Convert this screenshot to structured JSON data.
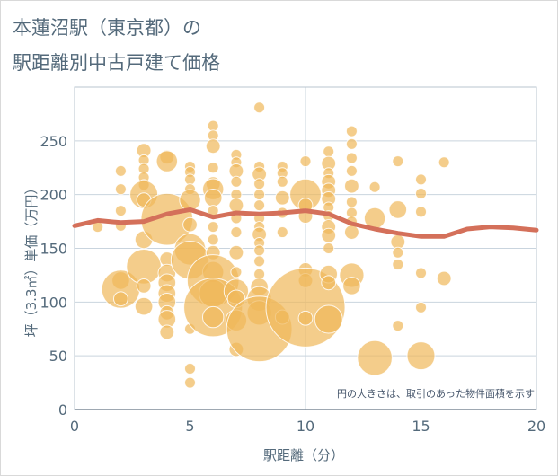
{
  "title_line1": "本蓮沼駅（東京都）の",
  "title_line2": "駅距離別中古戸建て価格",
  "chart_data": {
    "type": "scatter",
    "xlabel": "駅距離（分）",
    "ylabel": "坪（3.3㎡）単価（万円）",
    "xlim": [
      0,
      20
    ],
    "ylim": [
      0,
      300
    ],
    "xticks": [
      "0",
      "5",
      "10",
      "15",
      "20"
    ],
    "yticks": [
      "0",
      "50",
      "100",
      "150",
      "200",
      "250"
    ],
    "annotation": "円の大きさは、取引のあった物件面積を示す",
    "colors": {
      "bubble": "#f0b85a",
      "line": "#d4705a",
      "grid": "#c9d4de"
    },
    "bubbles": [
      {
        "x": 1,
        "y": 170,
        "size": 2
      },
      {
        "x": 2,
        "y": 222,
        "size": 2
      },
      {
        "x": 2,
        "y": 205,
        "size": 2
      },
      {
        "x": 2,
        "y": 185,
        "size": 2
      },
      {
        "x": 2,
        "y": 171,
        "size": 2
      },
      {
        "x": 2,
        "y": 120,
        "size": 4
      },
      {
        "x": 2,
        "y": 112,
        "size": 10
      },
      {
        "x": 2,
        "y": 103,
        "size": 3
      },
      {
        "x": 3,
        "y": 241,
        "size": 3
      },
      {
        "x": 3,
        "y": 232,
        "size": 2
      },
      {
        "x": 3,
        "y": 224,
        "size": 2
      },
      {
        "x": 3,
        "y": 216,
        "size": 2
      },
      {
        "x": 3,
        "y": 209,
        "size": 2
      },
      {
        "x": 3,
        "y": 200,
        "size": 7
      },
      {
        "x": 3,
        "y": 195,
        "size": 3
      },
      {
        "x": 3,
        "y": 158,
        "size": 4
      },
      {
        "x": 3,
        "y": 133,
        "size": 9
      },
      {
        "x": 3,
        "y": 115,
        "size": 3
      },
      {
        "x": 3,
        "y": 96,
        "size": 4
      },
      {
        "x": 4,
        "y": 235,
        "size": 3
      },
      {
        "x": 4,
        "y": 231,
        "size": 5
      },
      {
        "x": 4,
        "y": 177,
        "size": 14
      },
      {
        "x": 4,
        "y": 140,
        "size": 3
      },
      {
        "x": 4,
        "y": 127,
        "size": 4
      },
      {
        "x": 4,
        "y": 118,
        "size": 4
      },
      {
        "x": 4,
        "y": 108,
        "size": 4
      },
      {
        "x": 4,
        "y": 100,
        "size": 4
      },
      {
        "x": 4,
        "y": 90,
        "size": 3
      },
      {
        "x": 4,
        "y": 84,
        "size": 4
      },
      {
        "x": 4,
        "y": 72,
        "size": 3
      },
      {
        "x": 5,
        "y": 226,
        "size": 2
      },
      {
        "x": 5,
        "y": 221,
        "size": 2
      },
      {
        "x": 5,
        "y": 214,
        "size": 2
      },
      {
        "x": 5,
        "y": 205,
        "size": 2
      },
      {
        "x": 5,
        "y": 195,
        "size": 5
      },
      {
        "x": 5,
        "y": 172,
        "size": 3
      },
      {
        "x": 5,
        "y": 149,
        "size": 8
      },
      {
        "x": 5,
        "y": 139,
        "size": 10
      },
      {
        "x": 5,
        "y": 75,
        "size": 2
      },
      {
        "x": 5,
        "y": 38,
        "size": 2
      },
      {
        "x": 5,
        "y": 25,
        "size": 2
      },
      {
        "x": 6,
        "y": 264,
        "size": 2
      },
      {
        "x": 6,
        "y": 255,
        "size": 2
      },
      {
        "x": 6,
        "y": 245,
        "size": 3
      },
      {
        "x": 6,
        "y": 225,
        "size": 2
      },
      {
        "x": 6,
        "y": 210,
        "size": 3
      },
      {
        "x": 6,
        "y": 205,
        "size": 5
      },
      {
        "x": 6,
        "y": 197,
        "size": 4
      },
      {
        "x": 6,
        "y": 185,
        "size": 2
      },
      {
        "x": 6,
        "y": 170,
        "size": 2
      },
      {
        "x": 6,
        "y": 158,
        "size": 2
      },
      {
        "x": 6,
        "y": 146,
        "size": 3
      },
      {
        "x": 6,
        "y": 128,
        "size": 5
      },
      {
        "x": 6,
        "y": 120,
        "size": 14
      },
      {
        "x": 6,
        "y": 108,
        "size": 7
      },
      {
        "x": 6,
        "y": 95,
        "size": 16
      },
      {
        "x": 6,
        "y": 86,
        "size": 5
      },
      {
        "x": 7,
        "y": 237,
        "size": 2
      },
      {
        "x": 7,
        "y": 230,
        "size": 2
      },
      {
        "x": 7,
        "y": 222,
        "size": 3
      },
      {
        "x": 7,
        "y": 212,
        "size": 2
      },
      {
        "x": 7,
        "y": 200,
        "size": 2
      },
      {
        "x": 7,
        "y": 190,
        "size": 3
      },
      {
        "x": 7,
        "y": 178,
        "size": 2
      },
      {
        "x": 7,
        "y": 165,
        "size": 2
      },
      {
        "x": 7,
        "y": 146,
        "size": 3
      },
      {
        "x": 7,
        "y": 128,
        "size": 2
      },
      {
        "x": 7,
        "y": 110,
        "size": 6
      },
      {
        "x": 7,
        "y": 103,
        "size": 4
      },
      {
        "x": 7,
        "y": 83,
        "size": 5
      },
      {
        "x": 7,
        "y": 56,
        "size": 3
      },
      {
        "x": 8,
        "y": 281,
        "size": 2
      },
      {
        "x": 8,
        "y": 226,
        "size": 2
      },
      {
        "x": 8,
        "y": 219,
        "size": 3
      },
      {
        "x": 8,
        "y": 210,
        "size": 2
      },
      {
        "x": 8,
        "y": 200,
        "size": 2
      },
      {
        "x": 8,
        "y": 190,
        "size": 2
      },
      {
        "x": 8,
        "y": 178,
        "size": 2
      },
      {
        "x": 8,
        "y": 170,
        "size": 2
      },
      {
        "x": 8,
        "y": 163,
        "size": 3
      },
      {
        "x": 8,
        "y": 155,
        "size": 2
      },
      {
        "x": 8,
        "y": 148,
        "size": 2
      },
      {
        "x": 8,
        "y": 138,
        "size": 2
      },
      {
        "x": 8,
        "y": 126,
        "size": 2
      },
      {
        "x": 8,
        "y": 114,
        "size": 4
      },
      {
        "x": 8,
        "y": 103,
        "size": 6
      },
      {
        "x": 8,
        "y": 90,
        "size": 6
      },
      {
        "x": 8,
        "y": 75,
        "size": 18
      },
      {
        "x": 9,
        "y": 226,
        "size": 2
      },
      {
        "x": 9,
        "y": 220,
        "size": 2
      },
      {
        "x": 9,
        "y": 212,
        "size": 2
      },
      {
        "x": 9,
        "y": 197,
        "size": 3
      },
      {
        "x": 9,
        "y": 183,
        "size": 2
      },
      {
        "x": 9,
        "y": 165,
        "size": 2
      },
      {
        "x": 9,
        "y": 86,
        "size": 3
      },
      {
        "x": 10,
        "y": 231,
        "size": 2
      },
      {
        "x": 10,
        "y": 200,
        "size": 8
      },
      {
        "x": 10,
        "y": 190,
        "size": 3
      },
      {
        "x": 10,
        "y": 180,
        "size": 3
      },
      {
        "x": 10,
        "y": 130,
        "size": 3
      },
      {
        "x": 10,
        "y": 120,
        "size": 3
      },
      {
        "x": 10,
        "y": 95,
        "size": 22
      },
      {
        "x": 10,
        "y": 85,
        "size": 3
      },
      {
        "x": 11,
        "y": 240,
        "size": 2
      },
      {
        "x": 11,
        "y": 229,
        "size": 3
      },
      {
        "x": 11,
        "y": 220,
        "size": 2
      },
      {
        "x": 11,
        "y": 212,
        "size": 3
      },
      {
        "x": 11,
        "y": 204,
        "size": 3
      },
      {
        "x": 11,
        "y": 196,
        "size": 3
      },
      {
        "x": 11,
        "y": 188,
        "size": 2
      },
      {
        "x": 11,
        "y": 180,
        "size": 2
      },
      {
        "x": 11,
        "y": 170,
        "size": 3
      },
      {
        "x": 11,
        "y": 162,
        "size": 3
      },
      {
        "x": 11,
        "y": 150,
        "size": 2
      },
      {
        "x": 11,
        "y": 126,
        "size": 4
      },
      {
        "x": 11,
        "y": 118,
        "size": 3
      },
      {
        "x": 11,
        "y": 84,
        "size": 7
      },
      {
        "x": 12,
        "y": 259,
        "size": 2
      },
      {
        "x": 12,
        "y": 247,
        "size": 2
      },
      {
        "x": 12,
        "y": 234,
        "size": 2
      },
      {
        "x": 12,
        "y": 222,
        "size": 2
      },
      {
        "x": 12,
        "y": 208,
        "size": 3
      },
      {
        "x": 12,
        "y": 193,
        "size": 2
      },
      {
        "x": 12,
        "y": 183,
        "size": 2
      },
      {
        "x": 12,
        "y": 175,
        "size": 2
      },
      {
        "x": 12,
        "y": 165,
        "size": 3
      },
      {
        "x": 12,
        "y": 125,
        "size": 6
      },
      {
        "x": 12,
        "y": 115,
        "size": 4
      },
      {
        "x": 13,
        "y": 207,
        "size": 2
      },
      {
        "x": 13,
        "y": 178,
        "size": 5
      },
      {
        "x": 13,
        "y": 48,
        "size": 9
      },
      {
        "x": 14,
        "y": 231,
        "size": 2
      },
      {
        "x": 14,
        "y": 186,
        "size": 4
      },
      {
        "x": 14,
        "y": 156,
        "size": 3
      },
      {
        "x": 14,
        "y": 146,
        "size": 2
      },
      {
        "x": 14,
        "y": 135,
        "size": 2
      },
      {
        "x": 14,
        "y": 78,
        "size": 2
      },
      {
        "x": 15,
        "y": 214,
        "size": 2
      },
      {
        "x": 15,
        "y": 201,
        "size": 2
      },
      {
        "x": 15,
        "y": 184,
        "size": 2
      },
      {
        "x": 15,
        "y": 127,
        "size": 2
      },
      {
        "x": 15,
        "y": 95,
        "size": 2
      },
      {
        "x": 15,
        "y": 50,
        "size": 7
      },
      {
        "x": 16,
        "y": 230,
        "size": 2
      },
      {
        "x": 16,
        "y": 122,
        "size": 3
      }
    ],
    "trend": {
      "x": [
        0,
        1,
        2,
        3,
        4,
        5,
        6,
        7,
        8,
        9,
        10,
        11,
        12,
        13,
        14,
        15,
        16,
        17,
        18,
        19,
        20
      ],
      "y": [
        171,
        176,
        174,
        175,
        182,
        186,
        179,
        183,
        182,
        183,
        185,
        182,
        173,
        168,
        164,
        161,
        161,
        168,
        170,
        169,
        167
      ]
    }
  }
}
